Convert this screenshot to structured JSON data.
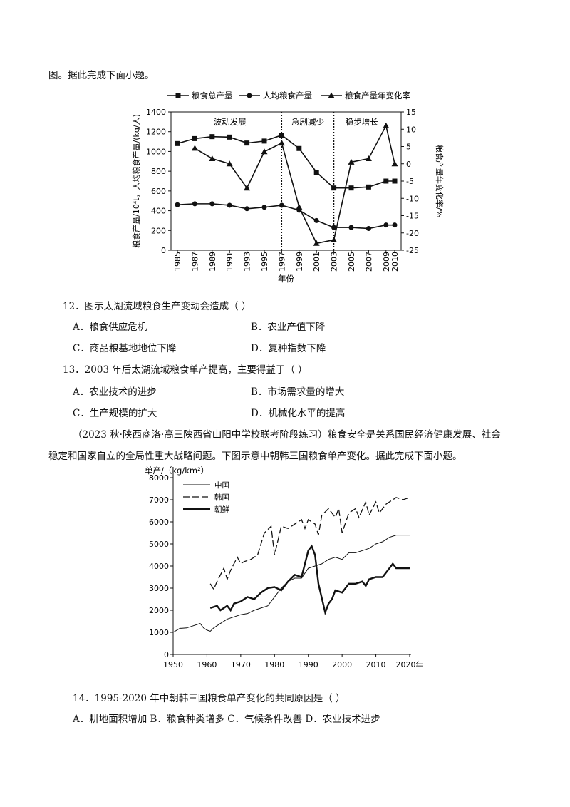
{
  "intro_line": "图。据此完成下面小题。",
  "chart1": {
    "legend": [
      "粮食总产量",
      "人均粮食产量",
      "粮食产量年变化率"
    ],
    "left_axis_label": "粮食产量/10⁴t，人均粮食产量/(kg/人)",
    "right_axis_label": "粮食产量年变化率/%",
    "x_label": "年份",
    "phases": [
      "波动发展",
      "急剧减少",
      "稳步增长"
    ],
    "years": [
      "1985",
      "1987",
      "1989",
      "1991",
      "1993",
      "1995",
      "1997",
      "1999",
      "2001",
      "2003",
      "2005",
      "2007",
      "2009",
      "2010"
    ],
    "left_ticks": [
      "1400",
      "1200",
      "1000",
      "800",
      "600",
      "400",
      "200",
      "0"
    ],
    "right_ticks": [
      "15",
      "10",
      "5",
      "0",
      "-5",
      "-10",
      "-15",
      "-20",
      "-25"
    ]
  },
  "q12": {
    "stem": "12．图示太湖流域粮食生产变动会造成（    ）",
    "A": "A．粮食供应危机",
    "B": "B．农业产值下降",
    "C": "C．商品粮基地地位下降",
    "D": "D．复种指数下降"
  },
  "q13": {
    "stem": "13．2003 年后太湖流域粮食单产提高，主要得益于（  ）",
    "A": "A．农业技术的进步",
    "B": "B．市场需求量的增大",
    "C": "C．生产规模的扩大",
    "D": "D．机械化水平的提高"
  },
  "passage_line1": "（2023 秋·陕西商洛·高三陕西省山阳中学校联考阶段练习）粮食安全是关系国民经济健康发展、社会",
  "passage_line2": "稳定和国家自立的全局性重大战略问题。下图示意中朝韩三国粮食单产变化。据此完成下面小题。",
  "chart2": {
    "y_label": "单产/（kg/km²）",
    "legend": [
      "中国",
      "韩国",
      "朝鲜"
    ],
    "y_ticks": [
      "8000",
      "7000",
      "6000",
      "5000",
      "4000",
      "3000",
      "2000",
      "1000",
      "0"
    ],
    "x_ticks": [
      "1950",
      "1960",
      "1970",
      "1980",
      "1990",
      "2000",
      "2010",
      "2020年"
    ]
  },
  "q14": {
    "stem": "14．1995-2020 年中朝韩三国粮食单产变化的共同原因是（    ）",
    "options": "A．耕地面积增加  B．粮食种类增多      C．气候条件改善      D．农业技术进步"
  },
  "chart_data": [
    {
      "type": "line",
      "x": [
        1985,
        1987,
        1989,
        1991,
        1993,
        1995,
        1997,
        1999,
        2001,
        2003,
        2005,
        2007,
        2009,
        2010
      ],
      "series": [
        {
          "name": "粮食总产量",
          "axis": "left",
          "values": [
            1080,
            1130,
            1150,
            1145,
            1085,
            1105,
            1165,
            1030,
            790,
            630,
            630,
            640,
            700,
            700
          ]
        },
        {
          "name": "人均粮食产量",
          "axis": "left",
          "values": [
            460,
            470,
            470,
            455,
            420,
            435,
            455,
            405,
            300,
            230,
            230,
            220,
            255,
            255
          ]
        },
        {
          "name": "粮食产量年变化率",
          "axis": "right",
          "x": [
            1987,
            1989,
            1991,
            1993,
            1995,
            1997,
            1999,
            2001,
            2003,
            2005,
            2007,
            2009,
            2010
          ],
          "values": [
            4.5,
            1.5,
            0,
            -7,
            3.5,
            6,
            -12.5,
            -23,
            -22,
            0.5,
            1.5,
            11,
            0
          ]
        }
      ],
      "ylim_left": [
        0,
        1400
      ],
      "ylim_right": [
        -25,
        15
      ],
      "phase_boundaries": [
        1997,
        2003
      ]
    },
    {
      "type": "line",
      "xlim": [
        1950,
        2020
      ],
      "ylim": [
        0,
        8000
      ],
      "series": [
        {
          "name": "中国",
          "x": [
            1950,
            1952,
            1954,
            1956,
            1958,
            1959,
            1960,
            1961,
            1962,
            1964,
            1966,
            1968,
            1970,
            1972,
            1974,
            1976,
            1978,
            1980,
            1982,
            1984,
            1986,
            1988,
            1990,
            1992,
            1994,
            1996,
            1998,
            2000,
            2002,
            2004,
            2006,
            2008,
            2010,
            2012,
            2014,
            2016,
            2018,
            2020
          ],
          "values": [
            1000,
            1180,
            1200,
            1300,
            1400,
            1200,
            1100,
            1050,
            1200,
            1400,
            1600,
            1700,
            1800,
            1850,
            2000,
            2100,
            2200,
            2600,
            3000,
            3300,
            3450,
            3450,
            3900,
            4000,
            4100,
            4300,
            4400,
            4300,
            4600,
            4600,
            4700,
            4800,
            5000,
            5100,
            5300,
            5400,
            5400,
            5400
          ]
        },
        {
          "name": "韩国",
          "x": [
            1961,
            1962,
            1963,
            1965,
            1966,
            1967,
            1969,
            1970,
            1971,
            1973,
            1975,
            1976,
            1977,
            1979,
            1980,
            1982,
            1984,
            1986,
            1988,
            1989,
            1990,
            1992,
            1993,
            1994,
            1996,
            1998,
            1999,
            2000,
            2002,
            2004,
            2005,
            2007,
            2008,
            2010,
            2011,
            2013,
            2015,
            2016,
            2018,
            2020
          ],
          "values": [
            3200,
            2950,
            3300,
            3900,
            3400,
            3800,
            4400,
            4100,
            4200,
            4300,
            4500,
            5000,
            5500,
            5800,
            4500,
            5800,
            5700,
            5900,
            6100,
            5700,
            6100,
            5900,
            5400,
            6300,
            6600,
            6200,
            6600,
            5500,
            6400,
            6600,
            6200,
            6900,
            6300,
            6900,
            6400,
            6800,
            7000,
            7100,
            7000,
            7100
          ]
        },
        {
          "name": "朝鲜",
          "x": [
            1961,
            1963,
            1964,
            1966,
            1967,
            1968,
            1970,
            1972,
            1974,
            1976,
            1978,
            1980,
            1982,
            1984,
            1986,
            1988,
            1990,
            1991,
            1992,
            1993,
            1995,
            1996,
            1997,
            1998,
            2000,
            2002,
            2004,
            2006,
            2007,
            2008,
            2010,
            2012,
            2014,
            2015,
            2016,
            2018,
            2020
          ],
          "values": [
            2100,
            2200,
            2000,
            2200,
            2000,
            2300,
            2400,
            2600,
            2500,
            2800,
            3000,
            3050,
            2900,
            3300,
            3600,
            3500,
            4700,
            4900,
            4500,
            3200,
            1900,
            2300,
            2500,
            2900,
            2800,
            3200,
            3200,
            3300,
            3100,
            3400,
            3500,
            3500,
            3900,
            4100,
            3900,
            3900,
            3900
          ]
        }
      ]
    }
  ]
}
